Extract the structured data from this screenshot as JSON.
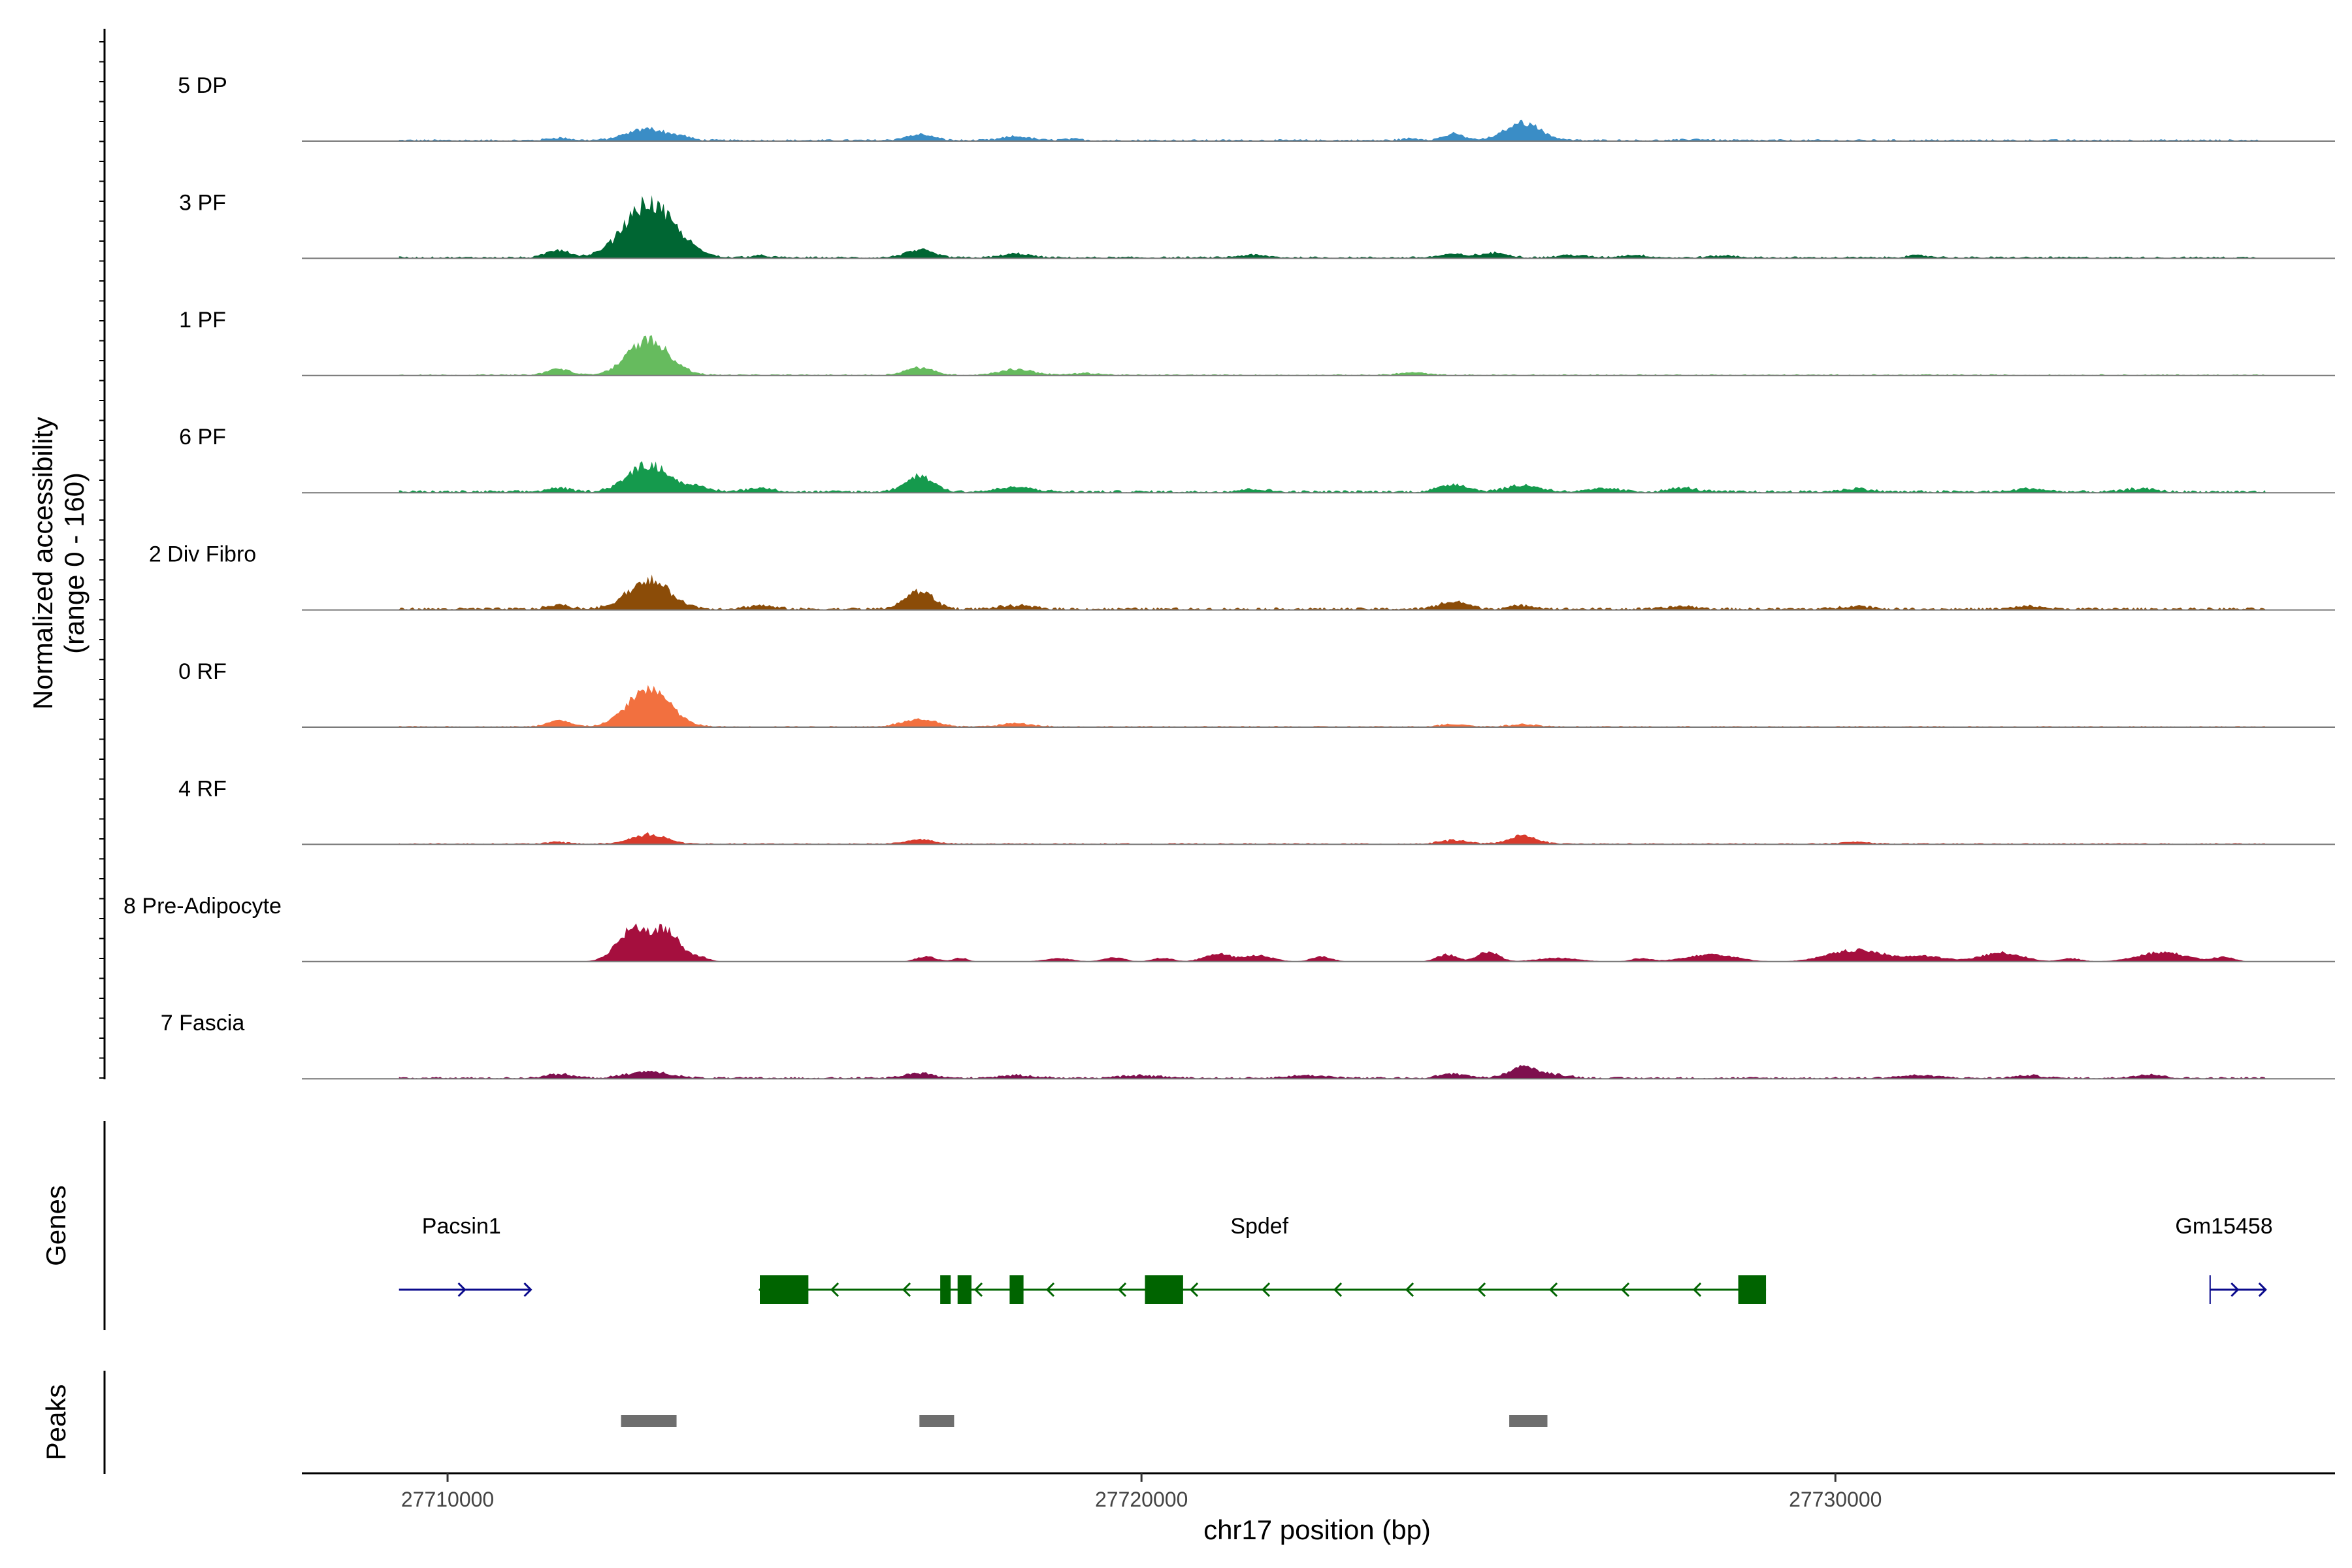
{
  "chart_data": {
    "type": "area",
    "chromosome": "chr17",
    "xlabel": "chr17 position (bp)",
    "ylabel": "Normalized accessibility",
    "ylabel_range": "(range 0 - 160)",
    "xlim": [
      27707900,
      27737200
    ],
    "ylim": [
      0,
      160
    ],
    "x_ticks": [
      27710000,
      27720000,
      27730000
    ],
    "x_tick_labels": [
      "27710000",
      "27720000",
      "27730000"
    ],
    "grid": false,
    "tracks": [
      {
        "name": "5 DP",
        "color": "#3A8DC6",
        "baseline_noise": 3,
        "peaks": [
          [
            27711600,
            160,
            4
          ],
          [
            27712900,
            300,
            18
          ],
          [
            27713400,
            100,
            3
          ],
          [
            27716800,
            200,
            9
          ],
          [
            27718200,
            200,
            6
          ],
          [
            27719000,
            150,
            2
          ],
          [
            27723900,
            150,
            3
          ],
          [
            27724500,
            150,
            10
          ],
          [
            27725500,
            250,
            28
          ],
          [
            27728000,
            150,
            2
          ]
        ]
      },
      {
        "name": "3 PF",
        "color": "#006633",
        "baseline_noise": 3,
        "peaks": [
          [
            27711600,
            160,
            12
          ],
          [
            27712900,
            350,
            85
          ],
          [
            27713500,
            200,
            5
          ],
          [
            27714500,
            150,
            3
          ],
          [
            27716800,
            200,
            12
          ],
          [
            27718200,
            200,
            6
          ],
          [
            27721600,
            200,
            4
          ],
          [
            27724500,
            200,
            5
          ],
          [
            27725100,
            200,
            7
          ],
          [
            27726200,
            200,
            4
          ],
          [
            27727100,
            200,
            4
          ],
          [
            27728400,
            200,
            3
          ],
          [
            27731200,
            200,
            3
          ]
        ]
      },
      {
        "name": "1 PF",
        "color": "#66BB5E",
        "baseline_noise": 2,
        "peaks": [
          [
            27711600,
            160,
            10
          ],
          [
            27712900,
            300,
            55
          ],
          [
            27716800,
            200,
            12
          ],
          [
            27718200,
            250,
            9
          ],
          [
            27719200,
            200,
            3
          ],
          [
            27723900,
            200,
            4
          ]
        ]
      },
      {
        "name": "6 PF",
        "color": "#159A4D",
        "baseline_noise": 4,
        "peaks": [
          [
            27711600,
            160,
            6
          ],
          [
            27712900,
            300,
            42
          ],
          [
            27713600,
            200,
            6
          ],
          [
            27714500,
            200,
            6
          ],
          [
            27716800,
            200,
            25
          ],
          [
            27718200,
            250,
            7
          ],
          [
            27721600,
            200,
            4
          ],
          [
            27724500,
            200,
            12
          ],
          [
            27725500,
            250,
            10
          ],
          [
            27726700,
            200,
            5
          ],
          [
            27727800,
            200,
            6
          ],
          [
            27730300,
            200,
            5
          ],
          [
            27732800,
            200,
            5
          ],
          [
            27734400,
            200,
            5
          ]
        ]
      },
      {
        "name": "2 Div Fibro",
        "color": "#8B4C08",
        "baseline_noise": 4,
        "peaks": [
          [
            27711600,
            160,
            6
          ],
          [
            27712900,
            300,
            45
          ],
          [
            27714500,
            200,
            5
          ],
          [
            27716800,
            200,
            28
          ],
          [
            27718200,
            250,
            5
          ],
          [
            27724500,
            200,
            12
          ],
          [
            27725500,
            200,
            5
          ],
          [
            27727800,
            200,
            4
          ],
          [
            27730300,
            200,
            5
          ],
          [
            27732800,
            200,
            4
          ]
        ]
      },
      {
        "name": "0 RF",
        "color": "#F2703F",
        "baseline_noise": 2,
        "peaks": [
          [
            27711600,
            160,
            10
          ],
          [
            27712900,
            300,
            60
          ],
          [
            27716800,
            250,
            12
          ],
          [
            27718200,
            250,
            5
          ],
          [
            27724500,
            200,
            4
          ],
          [
            27725500,
            200,
            4
          ]
        ]
      },
      {
        "name": "4 RF",
        "color": "#D83A2C",
        "baseline_noise": 2,
        "peaks": [
          [
            27711600,
            160,
            3
          ],
          [
            27712900,
            250,
            15
          ],
          [
            27716800,
            200,
            7
          ],
          [
            27724500,
            200,
            6
          ],
          [
            27725500,
            200,
            13
          ],
          [
            27730300,
            200,
            3
          ]
        ]
      },
      {
        "name": "8 Pre-Adipocyte",
        "color": "#A50F3E",
        "baseline_noise": 0,
        "peaks": [
          [
            27712600,
            200,
            25
          ],
          [
            27712900,
            300,
            38
          ],
          [
            27713200,
            150,
            25
          ],
          [
            27713600,
            150,
            7
          ],
          [
            27716900,
            150,
            8
          ],
          [
            27717400,
            100,
            6
          ],
          [
            27718800,
            200,
            5
          ],
          [
            27719600,
            150,
            7
          ],
          [
            27720300,
            150,
            6
          ],
          [
            27721100,
            200,
            12
          ],
          [
            27721700,
            200,
            10
          ],
          [
            27722600,
            150,
            8
          ],
          [
            27724400,
            150,
            11
          ],
          [
            27725000,
            150,
            16
          ],
          [
            27726000,
            300,
            6
          ],
          [
            27727200,
            150,
            5
          ],
          [
            27728200,
            350,
            12
          ],
          [
            27730300,
            400,
            18
          ],
          [
            27731300,
            300,
            8
          ],
          [
            27732400,
            300,
            14
          ],
          [
            27733400,
            150,
            5
          ],
          [
            27734700,
            350,
            15
          ],
          [
            27735600,
            150,
            7
          ]
        ]
      },
      {
        "name": "7 Fascia",
        "color": "#7E0F4E",
        "baseline_noise": 3,
        "peaks": [
          [
            27711600,
            200,
            6
          ],
          [
            27712900,
            300,
            10
          ],
          [
            27716800,
            200,
            8
          ],
          [
            27718200,
            300,
            4
          ],
          [
            27720000,
            300,
            4
          ],
          [
            27722400,
            300,
            4
          ],
          [
            27724500,
            200,
            7
          ],
          [
            27725500,
            200,
            18
          ],
          [
            27726000,
            200,
            5
          ],
          [
            27731200,
            300,
            4
          ],
          [
            27732800,
            200,
            4
          ],
          [
            27734500,
            200,
            6
          ]
        ]
      }
    ],
    "genes_panel_title": "Genes",
    "genes": [
      {
        "name": "Pacsin1",
        "strand": "+",
        "start": 27709300,
        "end": 27711200,
        "label_x": 27710200,
        "color": "#0A0A8C",
        "exons": []
      },
      {
        "name": "Spdef",
        "strand": "-",
        "start": 27714500,
        "end": 27729000,
        "label_x": 27721700,
        "color": "#006400",
        "exons": [
          [
            27714500,
            27715200
          ],
          [
            27717100,
            27717250
          ],
          [
            27717350,
            27717550
          ],
          [
            27718100,
            27718300
          ],
          [
            27720050,
            27720600
          ],
          [
            27728600,
            27729000
          ]
        ]
      },
      {
        "name": "Gm15458",
        "strand": "+",
        "start": 27735400,
        "end": 27736200,
        "label_x": 27735600,
        "color": "#0A0A8C",
        "exons": []
      }
    ],
    "peaks_panel_title": "Peaks",
    "peak_regions": [
      [
        27712500,
        27713300
      ],
      [
        27716800,
        27717300
      ],
      [
        27725300,
        27725850
      ]
    ],
    "peak_color": "#6E6E6E"
  }
}
